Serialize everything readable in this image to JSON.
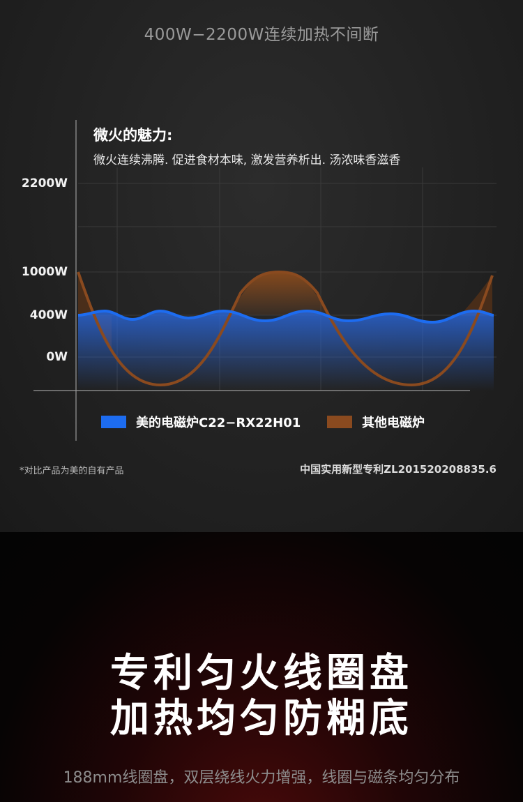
{
  "header": {
    "headline": "400W−2200W连续加热不间断"
  },
  "caption": {
    "title": "微火的魅力:",
    "text": "微火连续沸腾. 促进食材本味, 激发营养析出. 汤浓味香滋香"
  },
  "chart_data": {
    "type": "line",
    "y_tick_labels": [
      "2200W",
      "1000W",
      "400W",
      "0W"
    ],
    "series": [
      {
        "name": "美的电磁炉C22−RX22H01",
        "color": "#1f6cf0",
        "description_values": "flat near 400W with small ripples"
      },
      {
        "name": "其他电磁炉",
        "color": "#8a4a1f",
        "description_values": "large oscillation between 1000W and off"
      }
    ],
    "grid": true,
    "legend_placement": "bottom"
  },
  "legend": {
    "midea_label": "美的电磁炉C22−RX22H01",
    "other_label": "其他电磁炉"
  },
  "notes": {
    "left": "*对比产品为美的自有产品",
    "right": "中国实用新型专利ZL201520208835.6"
  },
  "promo": {
    "line1": "专利匀火线圈盘",
    "line2": "加热均匀防糊底",
    "subtitle": "188mm线圈盘，双层绕线火力增强，线圈与磁条均匀分布"
  }
}
